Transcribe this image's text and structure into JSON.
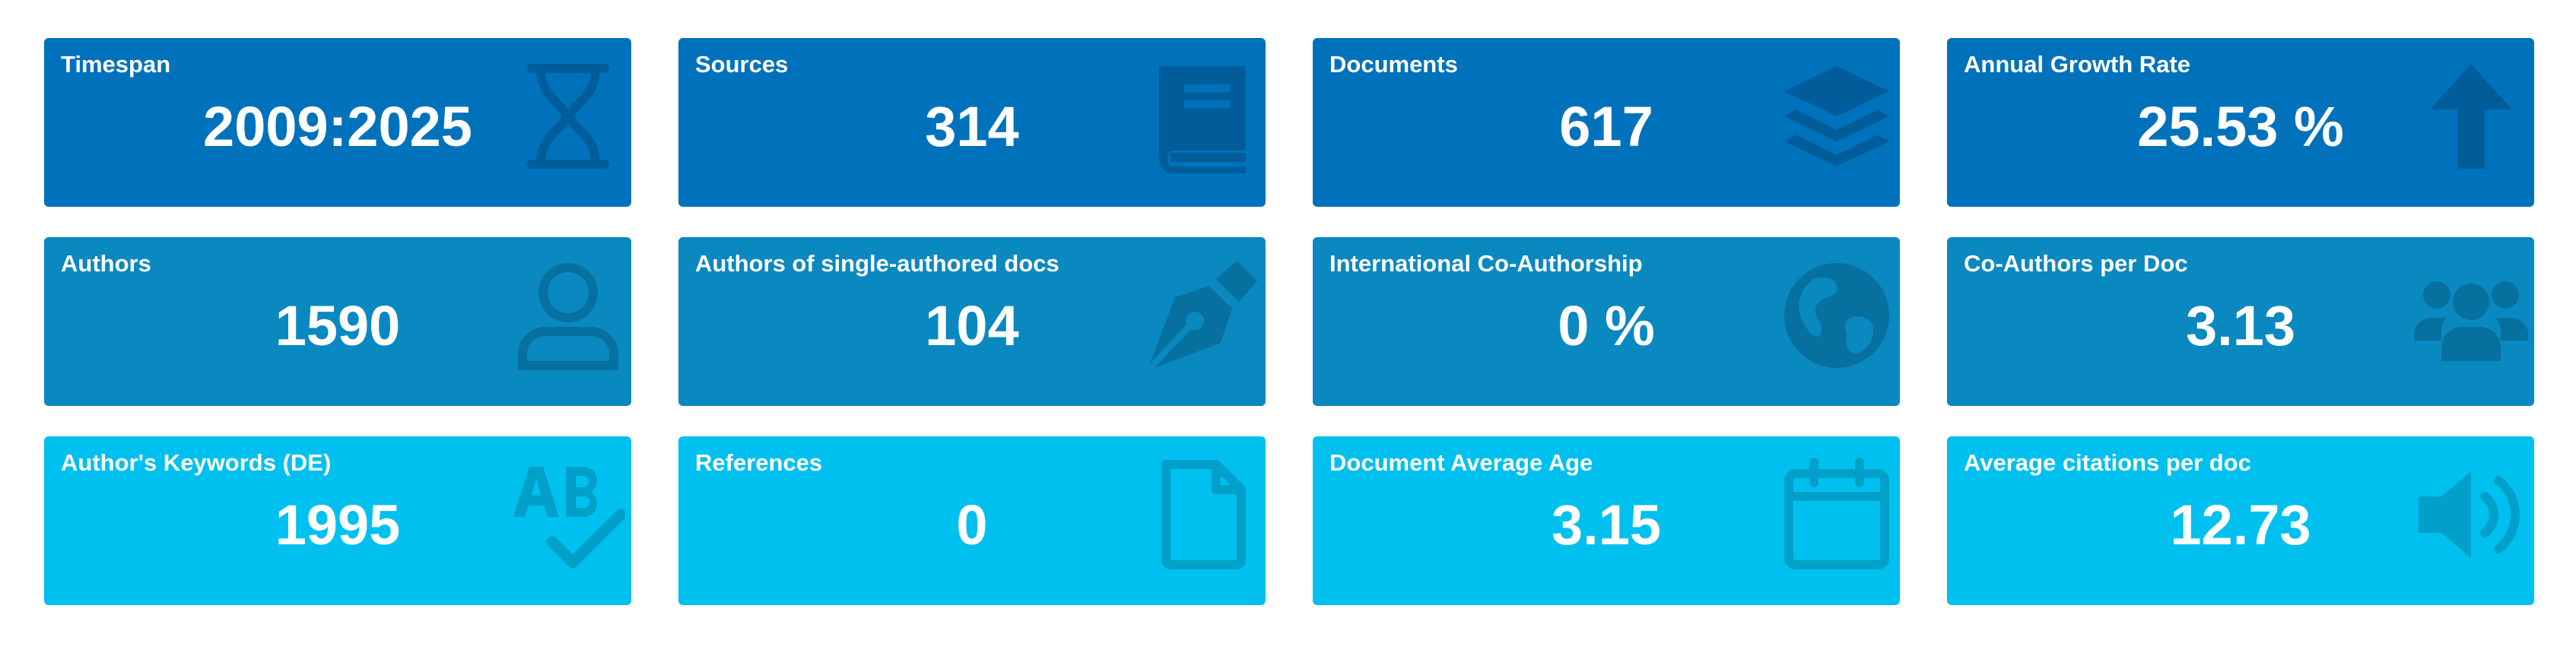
{
  "colors": {
    "row1": "#0072BC",
    "row1_icon": "#005d9a",
    "row2": "#0a88c0",
    "row2_icon": "#06709f",
    "row3": "#00c0ef",
    "row3_icon": "#00a0c8"
  },
  "cards": [
    {
      "title": "Timespan",
      "value": "2009:2025",
      "icon": "hourglass-icon"
    },
    {
      "title": "Sources",
      "value": "314",
      "icon": "book-icon"
    },
    {
      "title": "Documents",
      "value": "617",
      "icon": "layers-icon"
    },
    {
      "title": "Annual Growth Rate",
      "value": "25.53 %",
      "icon": "arrow-up-icon"
    },
    {
      "title": "Authors",
      "value": "1590",
      "icon": "user-icon"
    },
    {
      "title": "Authors of single-authored docs",
      "value": "104",
      "icon": "pen-nib-icon"
    },
    {
      "title": "International Co-Authorship",
      "value": "0 %",
      "icon": "globe-icon"
    },
    {
      "title": "Co-Authors per Doc",
      "value": "3.13",
      "icon": "users-icon"
    },
    {
      "title": "Author's Keywords (DE)",
      "value": "1995",
      "icon": "spell-check-icon"
    },
    {
      "title": "References",
      "value": "0",
      "icon": "file-icon"
    },
    {
      "title": "Document Average Age",
      "value": "3.15",
      "icon": "calendar-icon"
    },
    {
      "title": "Average citations per doc",
      "value": "12.73",
      "icon": "volume-icon"
    }
  ]
}
